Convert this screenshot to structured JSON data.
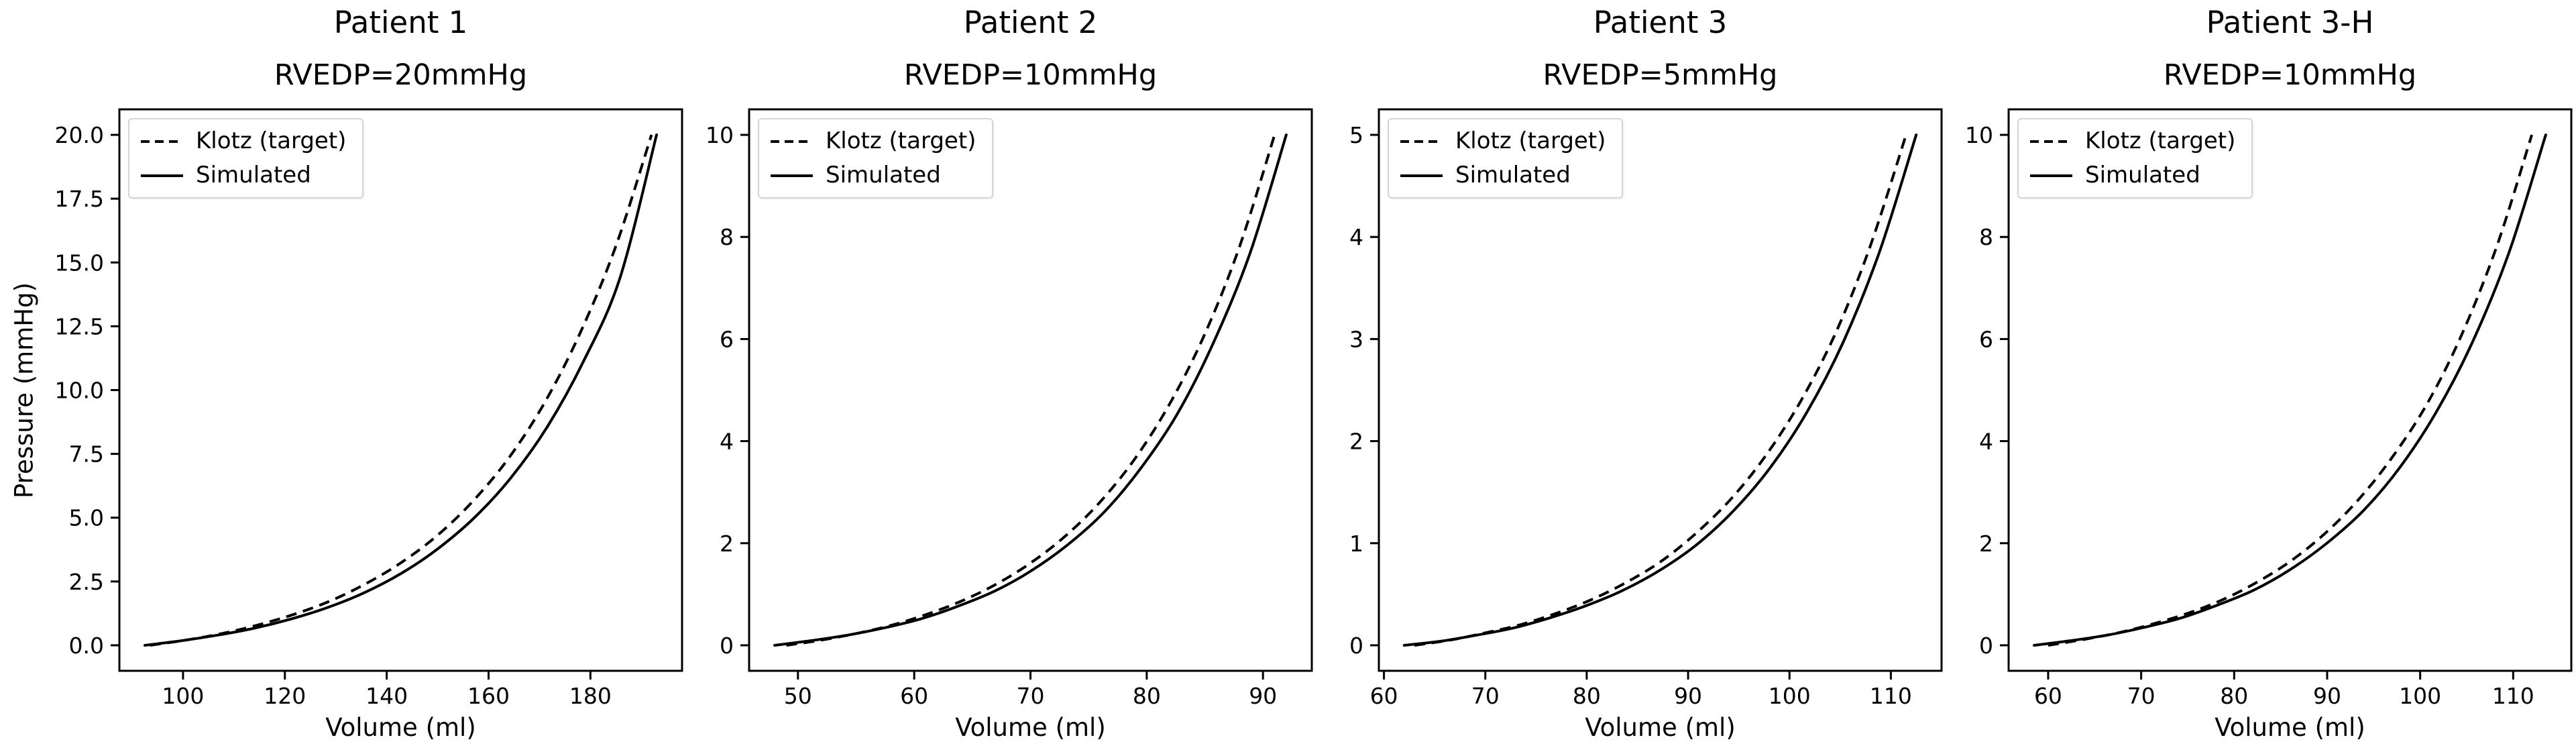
{
  "figure": {
    "background": "#ffffff",
    "line_color": "#000000"
  },
  "chart_data": [
    {
      "type": "line",
      "title": "Patient 1",
      "subtitle": "RVEDP=20mmHg",
      "xlabel": "Volume (ml)",
      "ylabel": "Pressure (mmHg)",
      "xlim": [
        87.5,
        198
      ],
      "ylim": [
        -1,
        21
      ],
      "xticks": {
        "values": [
          100,
          120,
          140,
          160,
          180
        ],
        "labels": [
          "100",
          "120",
          "140",
          "160",
          "180"
        ]
      },
      "yticks": {
        "values": [
          0,
          2.5,
          5,
          7.5,
          10,
          12.5,
          15,
          17.5,
          20
        ],
        "labels": [
          "0.0",
          "2.5",
          "5.0",
          "7.5",
          "10.0",
          "12.5",
          "15.0",
          "17.5",
          "20.0"
        ]
      },
      "grid": false,
      "legend": {
        "position": "upper-left",
        "entries": [
          {
            "label": "Klotz (target)",
            "style": "dashed"
          },
          {
            "label": "Simulated",
            "style": "solid"
          }
        ]
      },
      "series": [
        {
          "name": "Klotz (target)",
          "style": "dashed",
          "color": "#000000",
          "x": [
            93.5,
            100.5,
            107.6,
            114.6,
            121.6,
            128.7,
            135.7,
            142.7,
            149.8,
            156.8,
            163.9,
            170.9,
            177.9,
            185.0,
            192.0
          ],
          "y": [
            0,
            0.2,
            0.46,
            0.79,
            1.2,
            1.72,
            2.39,
            3.22,
            4.28,
            5.62,
            7.32,
            9.47,
            12.2,
            15.64,
            20.0
          ]
        },
        {
          "name": "Simulated",
          "style": "solid",
          "color": "#000000",
          "x": [
            92.5,
            99.7,
            106.9,
            114.0,
            121.2,
            128.4,
            135.6,
            142.8,
            149.9,
            157.1,
            164.3,
            171.5,
            178.6,
            185.8,
            193.0
          ],
          "y": [
            0,
            0.18,
            0.4,
            0.67,
            1.03,
            1.48,
            2.06,
            2.81,
            3.76,
            4.98,
            6.54,
            8.55,
            11.11,
            14.39,
            20.0
          ]
        }
      ]
    },
    {
      "type": "line",
      "title": "Patient 2",
      "subtitle": "RVEDP=10mmHg",
      "xlabel": "Volume (ml)",
      "ylabel": "",
      "xlim": [
        45.8,
        94.2
      ],
      "ylim": [
        -0.5,
        10.5
      ],
      "xticks": {
        "values": [
          50,
          60,
          70,
          80,
          90
        ],
        "labels": [
          "50",
          "60",
          "70",
          "80",
          "90"
        ]
      },
      "yticks": {
        "values": [
          0,
          2,
          4,
          6,
          8,
          10
        ],
        "labels": [
          "0",
          "2",
          "4",
          "6",
          "8",
          "10"
        ]
      },
      "grid": false,
      "legend": {
        "position": "upper-left",
        "entries": [
          {
            "label": "Klotz (target)",
            "style": "dashed"
          },
          {
            "label": "Simulated",
            "style": "solid"
          }
        ]
      },
      "series": [
        {
          "name": "Klotz (target)",
          "style": "dashed",
          "color": "#000000",
          "x": [
            49,
            52,
            55,
            58,
            61,
            64,
            67,
            70,
            73,
            76,
            79,
            82,
            85,
            88,
            91
          ],
          "y": [
            0,
            0.1,
            0.23,
            0.39,
            0.6,
            0.86,
            1.19,
            1.61,
            2.14,
            2.81,
            3.66,
            4.74,
            6.1,
            7.82,
            10.0
          ]
        },
        {
          "name": "Simulated",
          "style": "solid",
          "color": "#000000",
          "x": [
            48,
            51.1,
            54.3,
            57.4,
            60.6,
            63.7,
            66.9,
            70.0,
            73.1,
            76.3,
            79.4,
            82.6,
            85.7,
            88.9,
            92.0
          ],
          "y": [
            0,
            0.09,
            0.2,
            0.34,
            0.52,
            0.76,
            1.06,
            1.45,
            1.95,
            2.6,
            3.44,
            4.52,
            5.91,
            7.69,
            10.0
          ]
        }
      ]
    },
    {
      "type": "line",
      "title": "Patient 3",
      "subtitle": "RVEDP=5mmHg",
      "xlabel": "Volume (ml)",
      "ylabel": "",
      "xlim": [
        59.5,
        115.0
      ],
      "ylim": [
        -0.25,
        5.25
      ],
      "xticks": {
        "values": [
          60,
          70,
          80,
          90,
          100,
          110
        ],
        "labels": [
          "60",
          "70",
          "80",
          "90",
          "100",
          "110"
        ]
      },
      "yticks": {
        "values": [
          0,
          1,
          2,
          3,
          4,
          5
        ],
        "labels": [
          "0",
          "1",
          "2",
          "3",
          "4",
          "5"
        ]
      },
      "grid": false,
      "legend": {
        "position": "upper-left",
        "entries": [
          {
            "label": "Klotz (target)",
            "style": "dashed"
          },
          {
            "label": "Simulated",
            "style": "solid"
          }
        ]
      },
      "series": [
        {
          "name": "Klotz (target)",
          "style": "dashed",
          "color": "#000000",
          "x": [
            63.0,
            66.5,
            69.9,
            73.4,
            76.9,
            80.3,
            83.8,
            87.3,
            90.7,
            94.2,
            97.6,
            101.1,
            104.6,
            108.0,
            111.5
          ],
          "y": [
            0,
            0.05,
            0.12,
            0.2,
            0.31,
            0.44,
            0.61,
            0.82,
            1.09,
            1.43,
            1.85,
            2.39,
            3.07,
            3.92,
            5.0
          ]
        },
        {
          "name": "Simulated",
          "style": "solid",
          "color": "#000000",
          "x": [
            62.0,
            65.6,
            69.2,
            72.8,
            76.4,
            80.0,
            83.6,
            87.3,
            90.9,
            94.5,
            98.1,
            101.7,
            105.3,
            108.9,
            112.5
          ],
          "y": [
            0,
            0.04,
            0.1,
            0.17,
            0.27,
            0.39,
            0.54,
            0.74,
            0.99,
            1.32,
            1.74,
            2.28,
            2.97,
            3.86,
            5.0
          ]
        }
      ]
    },
    {
      "type": "line",
      "title": "Patient 3-H",
      "subtitle": "RVEDP=10mmHg",
      "xlabel": "Volume (ml)",
      "ylabel": "",
      "xlim": [
        55.75,
        116.25
      ],
      "ylim": [
        -0.5,
        10.5
      ],
      "xticks": {
        "values": [
          60,
          70,
          80,
          90,
          100,
          110
        ],
        "labels": [
          "60",
          "70",
          "80",
          "90",
          "100",
          "110"
        ]
      },
      "yticks": {
        "values": [
          0,
          2,
          4,
          6,
          8,
          10
        ],
        "labels": [
          "0",
          "2",
          "4",
          "6",
          "8",
          "10"
        ]
      },
      "grid": false,
      "legend": {
        "position": "upper-left",
        "entries": [
          {
            "label": "Klotz (target)",
            "style": "dashed"
          },
          {
            "label": "Simulated",
            "style": "solid"
          }
        ]
      },
      "series": [
        {
          "name": "Klotz (target)",
          "style": "dashed",
          "color": "#000000",
          "x": [
            60.0,
            63.7,
            67.4,
            71.1,
            74.9,
            78.6,
            82.3,
            86.0,
            89.7,
            93.4,
            97.1,
            100.9,
            104.6,
            108.3,
            112.0
          ],
          "y": [
            0,
            0.11,
            0.24,
            0.41,
            0.62,
            0.88,
            1.22,
            1.64,
            2.18,
            2.86,
            3.71,
            4.78,
            6.14,
            7.85,
            10.0
          ]
        },
        {
          "name": "Simulated",
          "style": "solid",
          "color": "#000000",
          "x": [
            58.5,
            62.4,
            66.4,
            70.3,
            74.2,
            78.1,
            82.1,
            86.0,
            89.9,
            93.9,
            97.8,
            101.7,
            105.6,
            109.6,
            113.5
          ],
          "y": [
            0,
            0.09,
            0.2,
            0.35,
            0.53,
            0.78,
            1.08,
            1.48,
            1.99,
            2.64,
            3.48,
            4.56,
            5.93,
            7.72,
            10.0
          ]
        }
      ]
    }
  ]
}
